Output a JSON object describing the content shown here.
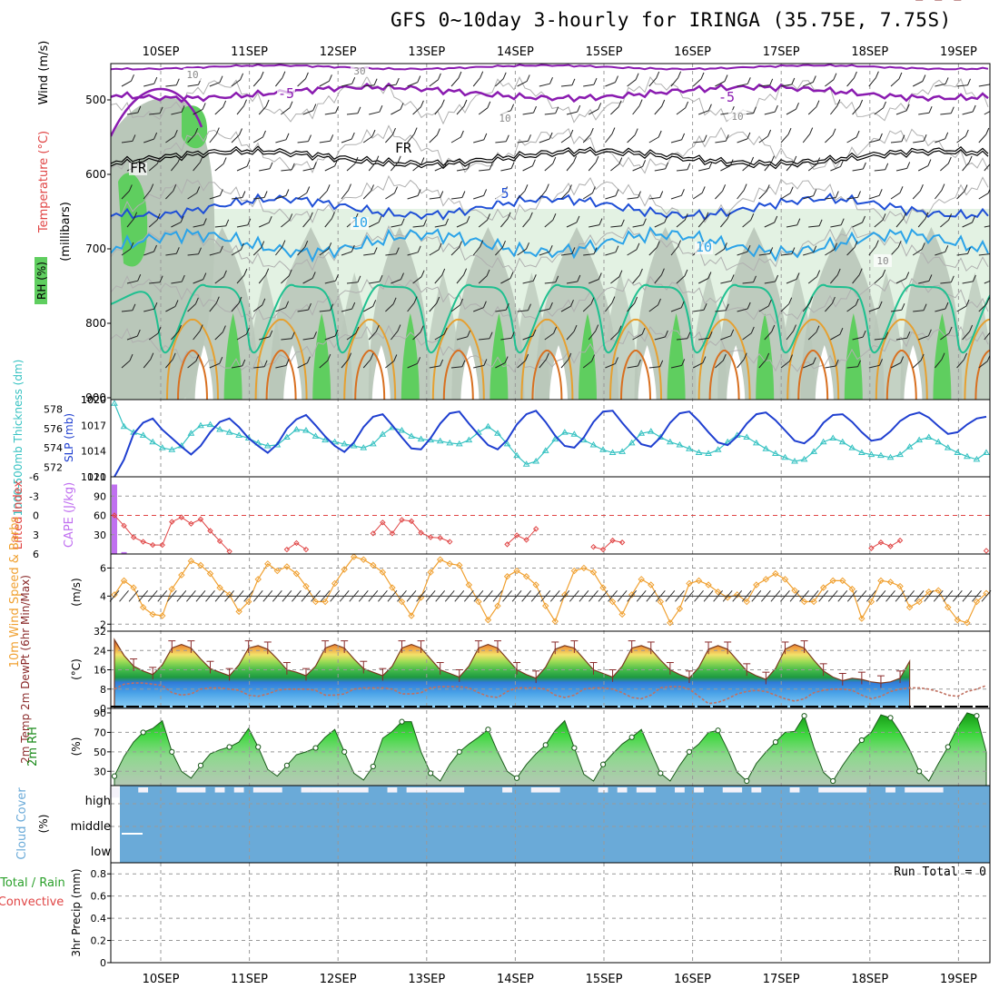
{
  "title": "GFS 0~10day 3-hourly for IRINGA (35.75E, 7.75S)",
  "dates": [
    "10SEP",
    "11SEP",
    "12SEP",
    "13SEP",
    "14SEP",
    "15SEP",
    "16SEP",
    "17SEP",
    "18SEP",
    "19SEP"
  ],
  "colors": {
    "grid": "#999999",
    "rh_light": "#e3f2e3",
    "rh_mid": "#b9c7b9",
    "rh_green": "#5fce5f",
    "temp_minus5": "#8a1bb0",
    "temp_fr": "#000000",
    "temp_5": "#1f4fd6",
    "temp_10": "#2ba3e8",
    "temp_15": "#1fc090",
    "temp_warm": "#e6a030",
    "slp": "#1f3fd0",
    "thickness": "#36c2c2",
    "lifted": "#e04545",
    "cape": "#c070f0",
    "wind": "#f0a030",
    "rh2m": "#40c040",
    "cloud": "#6aaad8",
    "cloud_gap": "#f4f2fa"
  },
  "panels": {
    "upper": {
      "ylabel_rh": "RH (%)",
      "ylabel_temp": "Temperature (°C)",
      "ylabel_wind": "Wind (m/s)",
      "ylabel_mb": "(millibars)",
      "ticks": [
        "500",
        "600",
        "700",
        "800",
        "900"
      ],
      "contour_labels": [
        "-5",
        "-5",
        "FR",
        "FR",
        "5",
        "10",
        "10",
        "10",
        "30",
        "10",
        "10",
        "10"
      ]
    },
    "slp": {
      "ylabel_thick": "1000-500mb Thickness (dm)",
      "ylabel_slp": "SLP (mb)",
      "left_ticks": [
        "578",
        "576",
        "574",
        "572"
      ],
      "right_ticks": [
        "1020",
        "1017",
        "1014",
        "1011"
      ]
    },
    "cape": {
      "ylabel_li": "Lifted Index",
      "ylabel_cape": "CAPE (J/kg)",
      "left_ticks": [
        "-6",
        "-3",
        "0",
        "3",
        "6"
      ],
      "right_ticks": [
        "120",
        "90",
        "60",
        "30"
      ]
    },
    "wind": {
      "ylabel": "10m Wind Speed & Barbs",
      "unit": "(m/s)",
      "ticks": [
        "6",
        "4",
        "2"
      ]
    },
    "temp": {
      "ylabel": "2m Temp 2m DewPt (6hr Min/Max)",
      "unit": "(°C)",
      "ticks": [
        "32",
        "24",
        "16",
        "8",
        "0"
      ]
    },
    "rh": {
      "ylabel": "2m RH",
      "unit": "(%)",
      "ticks": [
        "90",
        "70",
        "50",
        "30"
      ]
    },
    "cloud": {
      "ylabel": "Cloud Cover",
      "unit": "(%)",
      "levels": [
        "high",
        "middle",
        "low"
      ]
    },
    "precip": {
      "ylabel_a": "Total / Rain",
      "ylabel_b": "Convective",
      "ylabel_c": "3hr Precip (mm)",
      "ticks": [
        "0.8",
        "0.6",
        "0.4",
        "0.2",
        "0"
      ],
      "run_total": "Run Total = 0"
    }
  },
  "chart_data": [
    {
      "type": "line",
      "name": "SLP",
      "x_step_hours": 3,
      "ylim": [
        1011,
        1020
      ],
      "values": [
        1011,
        1013,
        1016,
        1017.3,
        1017.8,
        1016.5,
        1015.5,
        1014.5,
        1013.6,
        1014.6,
        1016.2,
        1017.4,
        1017.8,
        1016.8,
        1015.5,
        1014.6,
        1013.8,
        1014.8,
        1016.6,
        1017.7,
        1018.2,
        1017,
        1015.7,
        1014.6,
        1013.9,
        1015,
        1016.8,
        1018,
        1018.3,
        1017,
        1015.6,
        1014.3,
        1014.2,
        1015.5,
        1017.2,
        1018.4,
        1018.6,
        1017.2,
        1015.9,
        1014.7,
        1014.2,
        1015.3,
        1017.1,
        1018.3,
        1018.7,
        1017.4,
        1015.8,
        1014.6,
        1014.4,
        1015.6,
        1017.4,
        1018.6,
        1018.7,
        1017.3,
        1016,
        1014.8,
        1014.5,
        1015.6,
        1017.3,
        1018.4,
        1018.6,
        1017.5,
        1016.2,
        1015,
        1014.7,
        1015.7,
        1017.2,
        1018.3,
        1018.5,
        1017.6,
        1016.4,
        1015.2,
        1014.9,
        1015.8,
        1017.3,
        1018.2,
        1018.3,
        1017.4,
        1016.2,
        1015.2,
        1015.4,
        1016.3,
        1017.5,
        1018.2,
        1018.5,
        1017.9,
        1016.9,
        1016,
        1016.2,
        1017.1,
        1017.8,
        1018
      ]
    },
    {
      "type": "line",
      "name": "1000-500mb Thickness",
      "x_step_hours": 3,
      "ylim": [
        571,
        579
      ],
      "values": [
        578.6,
        576.2,
        575.6,
        575.3,
        574.6,
        574,
        573.8,
        574.2,
        575.5,
        576.3,
        576.4,
        575.9,
        575.6,
        575.3,
        575,
        574.5,
        574.2,
        574.3,
        575.1,
        575.9,
        575.8,
        575.2,
        574.8,
        574.6,
        574.4,
        574.2,
        574,
        574.4,
        575.4,
        576.1,
        575.8,
        575.2,
        574.9,
        574.8,
        574.7,
        574.5,
        574.4,
        574.8,
        575.6,
        576.2,
        575.5,
        574.4,
        573.2,
        572.3,
        572.6,
        573.7,
        574.9,
        575.6,
        575.4,
        574.8,
        574.3,
        573.8,
        573.5,
        573.6,
        574.5,
        575.5,
        575.7,
        575.1,
        574.6,
        574.3,
        573.9,
        573.5,
        573.4,
        573.8,
        574.6,
        575.3,
        575.1,
        574.5,
        573.9,
        573.4,
        573,
        572.6,
        572.8,
        573.6,
        574.6,
        575,
        574.6,
        574,
        573.5,
        573.3,
        573.2,
        573,
        573.3,
        574.1,
        574.8,
        575.1,
        574.6,
        574,
        573.5,
        573.1,
        572.8,
        573.5
      ]
    },
    {
      "type": "line",
      "name": "Lifted Index",
      "x_step_hours": 3,
      "ylim": [
        6,
        -6
      ],
      "values": [
        0,
        1.6,
        3.4,
        4.1,
        4.6,
        4.6,
        1,
        0.3,
        1.3,
        0.6,
        2.4,
        4,
        5.6,
        6,
        6,
        6,
        6,
        6,
        5.3,
        4.3,
        5.3,
        6,
        6,
        6,
        6,
        6,
        6,
        2.8,
        1.1,
        2.8,
        0.7,
        0.9,
        2.7,
        3.4,
        3.5,
        4.1,
        6,
        6,
        6,
        6,
        6,
        4.5,
        3.1,
        3.8,
        2.1,
        6,
        6,
        6,
        6,
        6,
        4.9,
        5.3,
        3.9,
        4.2,
        6,
        6,
        6,
        6,
        6,
        6,
        6,
        6,
        6,
        6,
        6,
        6,
        6,
        6,
        6,
        6,
        6,
        6,
        6,
        6,
        6,
        6,
        6,
        6,
        6,
        5.1,
        4.2,
        4.8,
        3.9,
        6,
        6,
        6,
        6,
        6,
        6,
        6,
        6,
        5.5
      ]
    },
    {
      "type": "bar",
      "name": "CAPE",
      "x_step_hours": 3,
      "ylim": [
        0,
        120
      ],
      "values": [
        108,
        3,
        0,
        0,
        0,
        0,
        0,
        0,
        0,
        0,
        0,
        0,
        0,
        0,
        0,
        0,
        0,
        0,
        0,
        0,
        0,
        0,
        0,
        0,
        0,
        0,
        0,
        0,
        0,
        0,
        0,
        0,
        0,
        0,
        0,
        0,
        0,
        0,
        0,
        0,
        0,
        0,
        0,
        0,
        0,
        0,
        0,
        0,
        0,
        0,
        0,
        0,
        0,
        0,
        0,
        0,
        0,
        0,
        0,
        0,
        0,
        0,
        0,
        0,
        0,
        0,
        0,
        0,
        0,
        0,
        0,
        0,
        0,
        0,
        0,
        0,
        0,
        0,
        0,
        0,
        0,
        0,
        0,
        0,
        0,
        0,
        0,
        0,
        0,
        0,
        0,
        0
      ]
    },
    {
      "type": "line",
      "name": "10m Wind Speed",
      "x_step_hours": 3,
      "ylim": [
        1.5,
        7
      ],
      "values": [
        4.1,
        5.1,
        4.6,
        3.2,
        2.7,
        2.6,
        4.5,
        5.5,
        6.5,
        6.2,
        5.6,
        4.6,
        4.1,
        2.9,
        3.6,
        5.2,
        6.3,
        5.8,
        6.1,
        5.6,
        4.7,
        3.6,
        3.6,
        4.9,
        5.9,
        6.8,
        6.6,
        6.2,
        5.7,
        4.6,
        3.6,
        2.6,
        3.9,
        5.7,
        6.6,
        6.3,
        6.2,
        4.8,
        3.6,
        2.3,
        3.3,
        5.4,
        5.8,
        5.4,
        4.8,
        3.3,
        2.2,
        4.1,
        5.8,
        6,
        5.7,
        4.6,
        3.6,
        2.7,
        4.1,
        5.2,
        4.8,
        3.6,
        2.1,
        3.1,
        4.9,
        5.1,
        4.8,
        4.3,
        3.9,
        4.1,
        3.6,
        4.8,
        5.2,
        5.6,
        5.2,
        4.4,
        3.6,
        3.6,
        4.6,
        5.1,
        5.1,
        4.5,
        2.4,
        3.6,
        5.1,
        5,
        4.7,
        3.2,
        3.6,
        4.3,
        4.4,
        3.2,
        2.3,
        2.1,
        3.6,
        4.2
      ]
    },
    {
      "type": "area",
      "name": "2m Temp",
      "x_step_hours": 3,
      "ylim": [
        0,
        32
      ],
      "values": [
        28.5,
        22,
        17.5,
        15.5,
        14,
        18,
        25,
        26.5,
        25,
        20.5,
        16.5,
        15,
        13.5,
        18,
        25,
        26,
        24.5,
        20.5,
        16,
        15,
        13.5,
        17.5,
        25,
        26.5,
        25,
        20.5,
        16.5,
        15,
        13.5,
        17.5,
        25,
        26.5,
        25,
        20.5,
        16,
        14.5,
        13,
        17.5,
        25,
        26.5,
        25,
        20.5,
        16,
        14,
        12.5,
        17,
        24.5,
        26,
        25,
        20.5,
        16,
        14.5,
        13,
        17.5,
        25,
        26,
        24.5,
        20,
        16,
        14,
        12.5,
        17,
        24.5,
        26,
        24.5,
        20,
        15.5,
        13.5,
        12,
        16.5,
        24.5,
        26.5,
        25,
        20,
        15.5,
        13,
        11.5,
        12.5,
        12,
        11,
        10.5,
        11,
        12.5,
        19.5
      ]
    },
    {
      "type": "line",
      "name": "2m DewPt",
      "x_step_hours": 3,
      "ylim": [
        0,
        32
      ],
      "values": [
        8,
        10,
        10.5,
        10.5,
        10,
        9.5,
        6.5,
        5.5,
        6,
        8,
        8.5,
        8.5,
        8,
        7.5,
        5.5,
        5,
        6,
        7.5,
        8,
        8,
        8,
        7.5,
        5.5,
        5.5,
        6,
        8,
        8.5,
        8.5,
        8.5,
        8,
        6,
        6,
        6.5,
        8.5,
        9,
        9,
        9,
        8.5,
        6.5,
        5,
        4.5,
        7,
        8.5,
        8.5,
        8.5,
        8,
        5.5,
        4.5,
        5.5,
        8,
        8.5,
        8.5,
        8,
        6.5,
        4.5,
        4,
        5.5,
        8.5,
        9,
        9,
        8,
        5,
        2,
        2.5,
        4,
        6,
        7,
        7.5,
        7,
        5.5,
        4,
        3,
        4,
        6.5,
        7.5,
        8,
        8,
        7.5,
        5.5,
        4,
        5,
        7,
        8,
        8.5,
        8.5,
        8,
        7,
        5.5,
        5,
        7,
        8,
        9.5
      ]
    },
    {
      "type": "area",
      "name": "2m RH",
      "x_step_hours": 3,
      "ylim": [
        20,
        90
      ],
      "values": [
        25,
        45,
        60,
        70,
        74,
        82,
        50,
        30,
        23,
        36,
        48,
        52,
        55,
        60,
        74,
        55,
        32,
        25,
        36,
        47,
        50,
        54,
        65,
        73,
        50,
        28,
        21,
        35,
        64,
        71,
        81,
        81,
        50,
        28,
        20,
        37,
        50,
        58,
        65,
        73,
        50,
        30,
        23,
        37,
        48,
        57,
        72,
        82,
        54,
        27,
        20,
        37,
        48,
        58,
        65,
        73,
        50,
        28,
        20,
        36,
        50,
        58,
        70,
        72,
        52,
        29,
        20,
        38,
        50,
        60,
        70,
        71,
        87,
        55,
        29,
        20,
        36,
        50,
        62,
        70,
        88,
        85,
        70,
        52,
        30,
        20,
        38,
        55,
        75,
        90,
        87,
        50
      ]
    },
    {
      "type": "area",
      "name": "Cloud Cover (high layer top, %)",
      "x_step_hours": 3,
      "ylim": [
        0,
        100
      ],
      "values": [
        60,
        100,
        100,
        80,
        100,
        100,
        100,
        80,
        80,
        80,
        100,
        80,
        100,
        80,
        100,
        80,
        80,
        80,
        100,
        100,
        80,
        80,
        80,
        80,
        80,
        80,
        80,
        100,
        100,
        80,
        100,
        80,
        80,
        80,
        80,
        80,
        80,
        100,
        100,
        100,
        100,
        80,
        100,
        100,
        80,
        80,
        80,
        100,
        100,
        100,
        100,
        80,
        100,
        80,
        100,
        80,
        80,
        100,
        100,
        80,
        100,
        80,
        100,
        100,
        80,
        80,
        100,
        80,
        100,
        100,
        100,
        80,
        100,
        100,
        80,
        80,
        80,
        80,
        80,
        100,
        100,
        80,
        100,
        80,
        80,
        80,
        80,
        100,
        100,
        100,
        100,
        100
      ]
    },
    {
      "type": "bar",
      "name": "3hr Precip",
      "x_step_hours": 3,
      "ylim": [
        0,
        0.9
      ],
      "values": [
        0,
        0,
        0,
        0,
        0,
        0,
        0,
        0,
        0,
        0,
        0,
        0,
        0,
        0,
        0,
        0,
        0,
        0,
        0,
        0,
        0,
        0,
        0,
        0,
        0,
        0,
        0,
        0,
        0,
        0,
        0,
        0,
        0,
        0,
        0,
        0,
        0,
        0,
        0,
        0,
        0,
        0,
        0,
        0,
        0,
        0,
        0,
        0,
        0,
        0,
        0,
        0,
        0,
        0,
        0,
        0,
        0,
        0,
        0,
        0,
        0,
        0,
        0,
        0,
        0,
        0,
        0,
        0,
        0,
        0,
        0,
        0,
        0,
        0,
        0,
        0,
        0,
        0,
        0,
        0,
        0,
        0,
        0,
        0,
        0,
        0,
        0,
        0,
        0,
        0,
        0,
        0
      ]
    }
  ]
}
